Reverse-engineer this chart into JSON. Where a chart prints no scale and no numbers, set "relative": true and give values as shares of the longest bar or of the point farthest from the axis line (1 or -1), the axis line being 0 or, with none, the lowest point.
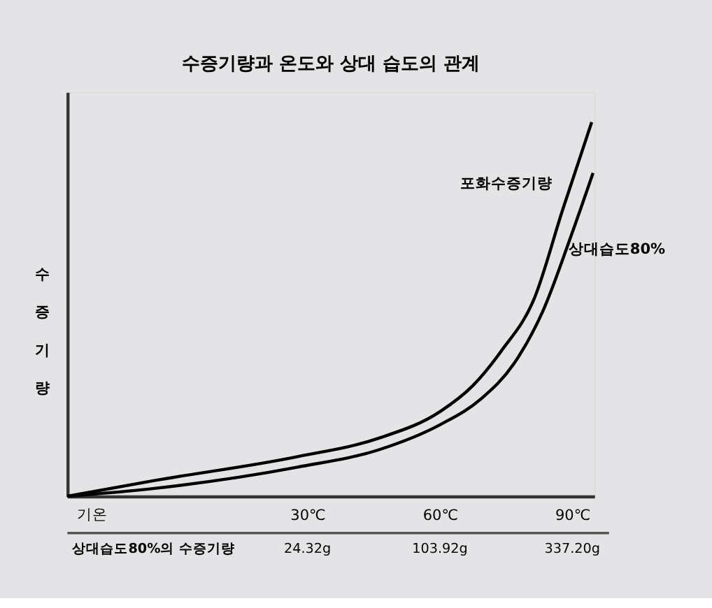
{
  "chart_data": {
    "type": "line",
    "title": "수증기량과 온도와 상대 습도의 관계",
    "xlabel": "기온",
    "ylabel": "수증기량",
    "relative": true,
    "xlim": [
      -24.4,
      95
    ],
    "xticks": [
      {
        "value": 30,
        "label": "30℃"
      },
      {
        "value": 60,
        "label": "60℃"
      },
      {
        "value": 90,
        "label": "90℃"
      }
    ],
    "series": [
      {
        "name": "포화수증기량",
        "color": "#000000",
        "x": [
          -24.4,
          -4.7,
          27.8,
          46.1,
          60,
          67.5,
          73.9,
          81.4,
          87.8,
          94.4
        ],
        "values": [
          0,
          0.042,
          0.106,
          0.155,
          0.226,
          0.296,
          0.388,
          0.529,
          0.765,
          1.0
        ]
      },
      {
        "name": "상대습도80%",
        "color": "#000000",
        "x": [
          -24.4,
          -4.7,
          27.8,
          46.1,
          60,
          69.4,
          76.7,
          83.3,
          89.7,
          94.7
        ],
        "values": [
          0,
          0.021,
          0.078,
          0.124,
          0.191,
          0.261,
          0.353,
          0.494,
          0.695,
          0.864
        ]
      }
    ],
    "annotations": [
      "상대습도80%의 수증기량",
      "24.32g",
      "103.92g",
      "337.20g"
    ],
    "grid": false,
    "line_style": "solid"
  }
}
